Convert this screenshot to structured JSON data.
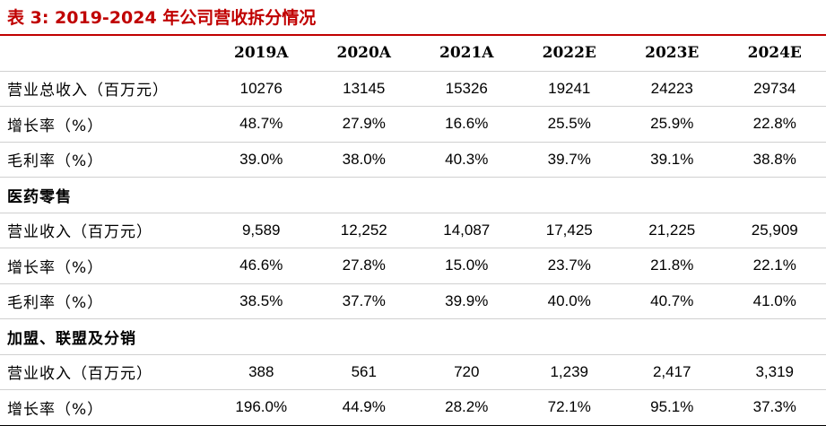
{
  "title": "表 3: 2019-2024 年公司营收拆分情况",
  "table": {
    "headers": [
      "",
      "2019A",
      "2020A",
      "2021A",
      "2022E",
      "2023E",
      "2024E"
    ],
    "rows": [
      {
        "type": "data",
        "label": "营业总收入（百万元）",
        "values": [
          "10276",
          "13145",
          "15326",
          "19241",
          "24223",
          "29734"
        ]
      },
      {
        "type": "data",
        "label": "增长率（%）",
        "values": [
          "48.7%",
          "27.9%",
          "16.6%",
          "25.5%",
          "25.9%",
          "22.8%"
        ]
      },
      {
        "type": "data",
        "label": "毛利率（%）",
        "values": [
          "39.0%",
          "38.0%",
          "40.3%",
          "39.7%",
          "39.1%",
          "38.8%"
        ]
      },
      {
        "type": "section",
        "label": "医药零售",
        "values": []
      },
      {
        "type": "data",
        "label": "营业收入（百万元）",
        "values": [
          "9,589",
          "12,252",
          "14,087",
          "17,425",
          "21,225",
          "25,909"
        ]
      },
      {
        "type": "data",
        "label": "增长率（%）",
        "values": [
          "46.6%",
          "27.8%",
          "15.0%",
          "23.7%",
          "21.8%",
          "22.1%"
        ]
      },
      {
        "type": "data",
        "label": "毛利率（%）",
        "values": [
          "38.5%",
          "37.7%",
          "39.9%",
          "40.0%",
          "40.7%",
          "41.0%"
        ]
      },
      {
        "type": "section",
        "label": "加盟、联盟及分销",
        "values": []
      },
      {
        "type": "data",
        "label": "营业收入（百万元）",
        "values": [
          "388",
          "561",
          "720",
          "1,239",
          "2,417",
          "3,319"
        ]
      },
      {
        "type": "data",
        "label": "增长率（%）",
        "values": [
          "196.0%",
          "44.9%",
          "28.2%",
          "72.1%",
          "95.1%",
          "37.3%"
        ]
      }
    ]
  }
}
